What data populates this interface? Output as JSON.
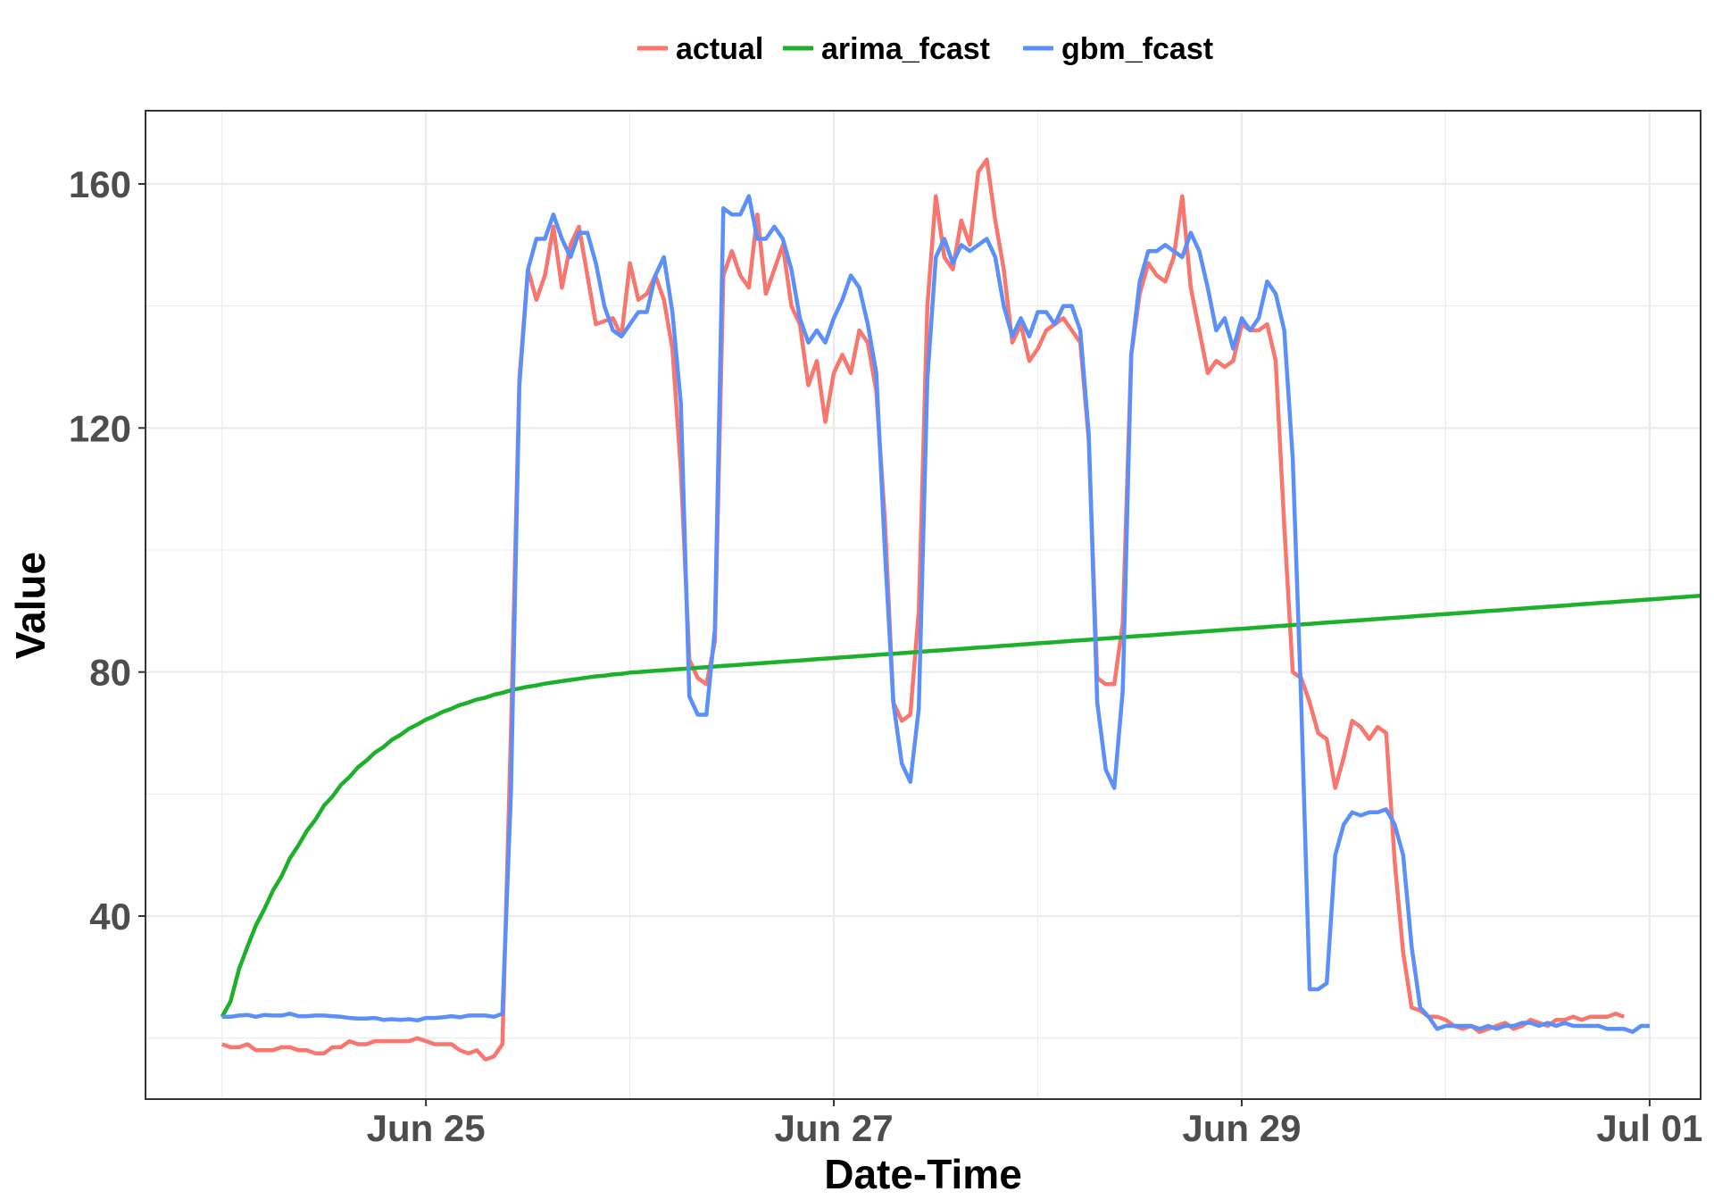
{
  "chart_data": {
    "type": "line",
    "xlabel": "Date-Time",
    "ylabel": "Value",
    "x_tick_labels": [
      "Jun 25",
      "Jun 27",
      "Jun 29",
      "Jul 01"
    ],
    "x_tick_dates": [
      "2017-06-25T00:00",
      "2017-06-27T00:00",
      "2017-06-29T00:00",
      "2017-07-01T00:00"
    ],
    "y_ticks": [
      40,
      80,
      120,
      160
    ],
    "xlim": [
      "2017-06-23T15:00",
      "2017-07-01T06:00"
    ],
    "ylim": [
      10,
      172
    ],
    "grid": true,
    "legend_position": "top",
    "x_start": "2017-06-24T00:00",
    "x_step_hours": 1,
    "colors": {
      "actual": "#f8766d",
      "arima_fcast": "#1db02b",
      "gbm_fcast": "#5b8ff9"
    },
    "series": [
      {
        "name": "actual",
        "values": [
          19,
          18.5,
          18.5,
          19,
          18,
          18,
          18,
          18.5,
          18.5,
          18,
          18,
          17.5,
          17.5,
          18.5,
          18.5,
          19.5,
          19,
          19,
          19.5,
          19.5,
          19.5,
          19.5,
          19.5,
          20,
          19.5,
          19,
          19,
          19,
          18,
          17.5,
          18,
          16.5,
          17,
          19,
          70,
          128,
          146,
          141,
          145,
          153,
          143,
          150,
          153,
          145,
          137,
          137.5,
          138,
          135,
          147,
          141,
          142,
          145,
          141,
          133,
          113,
          82,
          79,
          78,
          85,
          145,
          149,
          145,
          143,
          155,
          142,
          146,
          150,
          140,
          137,
          127,
          131,
          121,
          129,
          132,
          129,
          136,
          134,
          126,
          105,
          75,
          72,
          73,
          90,
          140,
          158,
          148,
          146,
          154,
          150,
          162,
          164,
          154,
          146,
          134,
          137,
          131,
          133,
          136,
          137,
          138,
          136,
          134,
          118,
          79,
          78,
          78,
          88,
          132,
          142,
          147,
          145,
          144,
          148,
          158,
          143,
          136,
          129,
          131,
          130,
          131,
          137,
          136,
          136,
          137,
          131,
          104,
          80,
          79,
          75,
          70,
          69,
          61,
          66,
          72,
          71,
          69,
          71,
          70,
          49,
          34,
          25,
          24.5,
          23.5,
          23.5,
          23,
          22,
          21.5,
          22,
          21,
          21.5,
          22,
          22.5,
          21.5,
          22,
          23,
          22.5,
          22,
          23,
          23,
          23.5,
          23,
          23.5,
          23.5,
          23.5,
          24,
          23.5
        ]
      },
      {
        "name": "arima_fcast",
        "values": [
          23.5,
          26.0,
          31.3,
          35.0,
          38.5,
          41.2,
          44.2,
          46.5,
          49.5,
          51.6,
          54.0,
          55.8,
          58.1,
          59.6,
          61.5,
          62.8,
          64.4,
          65.5,
          66.8,
          67.7,
          68.9,
          69.7,
          70.7,
          71.4,
          72.2,
          72.8,
          73.5,
          74.0,
          74.6,
          75.0,
          75.5,
          75.8,
          76.3,
          76.6,
          77.0,
          77.3,
          77.6,
          77.8,
          78.1,
          78.3,
          78.5,
          78.7,
          78.9,
          79.1,
          79.3,
          79.4,
          79.6,
          79.7,
          79.9,
          80.0,
          80.1,
          80.2,
          80.3,
          80.4,
          80.5,
          80.6,
          80.7,
          80.8,
          80.9,
          81.0,
          81.1,
          81.2,
          81.3,
          81.4,
          81.5,
          81.6,
          81.7,
          81.8,
          81.9,
          82.0,
          82.1,
          82.2,
          82.3,
          82.4,
          82.5,
          82.6,
          82.7,
          82.8,
          82.9,
          83.0,
          83.1,
          83.2,
          83.3,
          83.4,
          83.5,
          83.6,
          83.7,
          83.8,
          83.9,
          84.0,
          84.1,
          84.2,
          84.3,
          84.4,
          84.5,
          84.6,
          84.7,
          84.8,
          84.9,
          85.0,
          85.1,
          85.2,
          85.3,
          85.4,
          85.5,
          85.6,
          85.7,
          85.8,
          85.9,
          86.0,
          86.1,
          86.2,
          86.3,
          86.4,
          86.5,
          86.6,
          86.7,
          86.8,
          86.9,
          87.0,
          87.1,
          87.2,
          87.3,
          87.4,
          87.5,
          87.6,
          87.7,
          87.8,
          87.9,
          88.0,
          88.1,
          88.2,
          88.3,
          88.4,
          88.5,
          88.6,
          88.7,
          88.8,
          88.9,
          89.0,
          89.1,
          89.2,
          89.3,
          89.4,
          89.5,
          89.6,
          89.7,
          89.8,
          89.9,
          90.0,
          90.1,
          90.2,
          90.3,
          90.4,
          90.5,
          90.6,
          90.7,
          90.8,
          90.9,
          91.0,
          91.1,
          91.2,
          91.3,
          91.4,
          91.5,
          91.6,
          91.7,
          91.8,
          91.9,
          92.0,
          92.1,
          92.2,
          92.3,
          92.4,
          92.5
        ]
      },
      {
        "name": "gbm_fcast",
        "values": [
          23.5,
          23.5,
          23.7,
          23.8,
          23.5,
          23.8,
          23.7,
          23.7,
          24,
          23.6,
          23.6,
          23.7,
          23.7,
          23.6,
          23.5,
          23.3,
          23.2,
          23.2,
          23.3,
          23,
          23.1,
          23,
          23.1,
          22.9,
          23.3,
          23.3,
          23.4,
          23.6,
          23.4,
          23.7,
          23.7,
          23.7,
          23.5,
          24,
          60,
          127,
          146,
          151,
          151,
          155,
          151,
          148,
          152,
          152,
          147,
          140,
          136,
          135,
          137,
          139,
          139,
          145,
          148,
          139,
          124,
          76,
          73,
          73,
          87,
          156,
          155,
          155,
          158,
          151,
          151,
          153,
          151,
          146,
          138,
          134,
          136,
          134,
          138,
          141,
          145,
          143,
          137,
          129,
          100,
          75,
          65,
          62,
          74,
          128,
          148,
          151,
          147,
          150,
          149,
          150,
          151,
          148,
          140,
          135,
          138,
          135,
          139,
          139,
          137,
          140,
          140,
          136,
          119,
          75,
          64,
          61,
          77,
          132,
          144,
          149,
          149,
          150,
          149,
          148,
          152,
          149,
          143,
          136,
          138,
          133,
          138,
          136,
          138,
          144,
          142,
          136,
          115,
          75,
          28,
          28,
          29,
          50,
          55,
          57,
          56.5,
          57,
          57,
          57.5,
          55,
          50,
          35,
          25,
          23.5,
          21.5,
          22,
          22,
          22,
          22,
          21.5,
          22,
          21.5,
          22,
          22,
          22.5,
          22.5,
          22,
          22.5,
          22,
          22.5,
          22,
          22,
          22,
          22,
          21.5,
          21.5,
          21.5,
          21,
          22,
          22
        ]
      }
    ]
  }
}
